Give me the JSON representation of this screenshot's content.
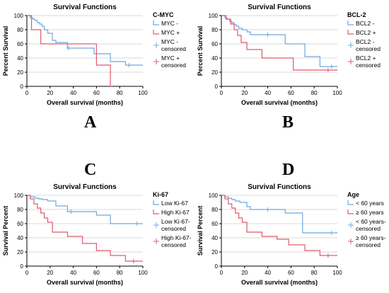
{
  "colors": {
    "low_group": "#6fa8dc",
    "high_group": "#e05a6e",
    "axis": "#000000",
    "grid": "#d9d9d9"
  },
  "panel_letters": [
    "A",
    "B",
    "C",
    "D"
  ],
  "chart_data": [
    {
      "type": "line",
      "title": "Survival Functions",
      "legend_title": "C-MYC",
      "xlabel": "Overall survival (months)",
      "ylabel": "Percent Survival",
      "xlim": [
        0,
        100
      ],
      "ylim": [
        0,
        100
      ],
      "xticks": [
        0,
        20,
        40,
        60,
        80,
        100
      ],
      "yticks": [
        0,
        20,
        40,
        60,
        80,
        100
      ],
      "grid": true,
      "legend": "right",
      "legend_entries": [
        "MYC -",
        "MYC +",
        "MYC -\ncensored",
        "MYC +\ncensored"
      ],
      "series": [
        {
          "name": "MYC -",
          "x": [
            0,
            3,
            5,
            7,
            9,
            11,
            13,
            15,
            18,
            22,
            25,
            35,
            58,
            72,
            85,
            100
          ],
          "y": [
            100,
            97,
            95,
            93,
            90,
            88,
            85,
            80,
            75,
            65,
            62,
            54,
            46,
            35,
            30,
            30
          ],
          "censored_x": [
            36,
            88
          ]
        },
        {
          "name": "MYC +",
          "x": [
            0,
            4,
            12,
            60,
            72,
            73
          ],
          "y": [
            100,
            80,
            60,
            30,
            0,
            0
          ],
          "censored_x": []
        }
      ]
    },
    {
      "type": "line",
      "title": "Survival Functions",
      "legend_title": "BCL-2",
      "xlabel": "Overall survival (months)",
      "ylabel": "Percent Survival",
      "xlim": [
        0,
        100
      ],
      "ylim": [
        0,
        100
      ],
      "xticks": [
        0,
        20,
        40,
        60,
        80,
        100
      ],
      "yticks": [
        0,
        20,
        40,
        60,
        80,
        100
      ],
      "grid": true,
      "legend": "right",
      "legend_entries": [
        "BCL2 -",
        "BCL2 +",
        "BCL2 -\ncensored",
        "BCL2 +\ncensored"
      ],
      "series": [
        {
          "name": "BCL2 -",
          "x": [
            0,
            3,
            5,
            7,
            9,
            11,
            13,
            15,
            18,
            22,
            25,
            55,
            72,
            85,
            100
          ],
          "y": [
            100,
            97,
            95,
            92,
            90,
            87,
            85,
            82,
            80,
            77,
            73,
            60,
            42,
            28,
            28
          ],
          "censored_x": [
            40,
            95
          ]
        },
        {
          "name": "BCL2 +",
          "x": [
            0,
            4,
            8,
            11,
            14,
            17,
            22,
            35,
            62,
            100
          ],
          "y": [
            100,
            95,
            88,
            80,
            72,
            62,
            52,
            40,
            23,
            23
          ],
          "censored_x": [
            92
          ]
        }
      ]
    },
    {
      "type": "line",
      "title": "Survival Functions",
      "legend_title": "Ki-67",
      "xlabel": "Overall survival (months)",
      "ylabel": "Survival Percent",
      "xlim": [
        0,
        100
      ],
      "ylim": [
        0,
        100
      ],
      "xticks": [
        0,
        20,
        40,
        60,
        80,
        100
      ],
      "yticks": [
        0,
        20,
        40,
        60,
        80,
        100
      ],
      "grid": true,
      "legend": "right",
      "legend_entries": [
        "Low Ki-67",
        "High Ki-67",
        "Low Ki-67-\ncensored",
        "High Ki-67-\ncensored"
      ],
      "series": [
        {
          "name": "Low Ki-67",
          "x": [
            0,
            3,
            7,
            10,
            13,
            18,
            25,
            35,
            60,
            72,
            100
          ],
          "y": [
            100,
            98,
            96,
            95,
            94,
            92,
            85,
            77,
            72,
            60,
            60
          ],
          "censored_x": [
            38,
            95
          ]
        },
        {
          "name": "High Ki-67",
          "x": [
            0,
            3,
            6,
            9,
            12,
            15,
            18,
            22,
            35,
            48,
            60,
            72,
            85,
            100
          ],
          "y": [
            100,
            95,
            88,
            82,
            75,
            68,
            62,
            48,
            42,
            32,
            22,
            15,
            7,
            7
          ],
          "censored_x": [
            92
          ]
        }
      ]
    },
    {
      "type": "line",
      "title": "Survival Functions",
      "legend_title": "Age",
      "xlabel": "Overall survival (months)",
      "ylabel": "Survival Percent",
      "xlim": [
        0,
        100
      ],
      "ylim": [
        0,
        100
      ],
      "xticks": [
        0,
        20,
        40,
        60,
        80,
        100
      ],
      "yticks": [
        0,
        20,
        40,
        60,
        80,
        100
      ],
      "grid": true,
      "legend": "right",
      "legend_entries": [
        "< 60 years",
        "≥ 60 years",
        "< 60 years-\ncensored",
        "≥ 60 years-\ncensored"
      ],
      "series": [
        {
          "name": "< 60 years",
          "x": [
            0,
            3,
            6,
            9,
            12,
            16,
            22,
            25,
            55,
            70,
            100
          ],
          "y": [
            100,
            98,
            96,
            94,
            92,
            90,
            84,
            80,
            75,
            47,
            47
          ],
          "censored_x": [
            40,
            95
          ]
        },
        {
          "name": "≥ 60 years",
          "x": [
            0,
            3,
            6,
            9,
            12,
            15,
            18,
            22,
            35,
            48,
            58,
            72,
            85,
            100
          ],
          "y": [
            100,
            95,
            88,
            82,
            75,
            68,
            62,
            48,
            42,
            38,
            30,
            22,
            15,
            15
          ],
          "censored_x": [
            92
          ]
        }
      ]
    }
  ]
}
